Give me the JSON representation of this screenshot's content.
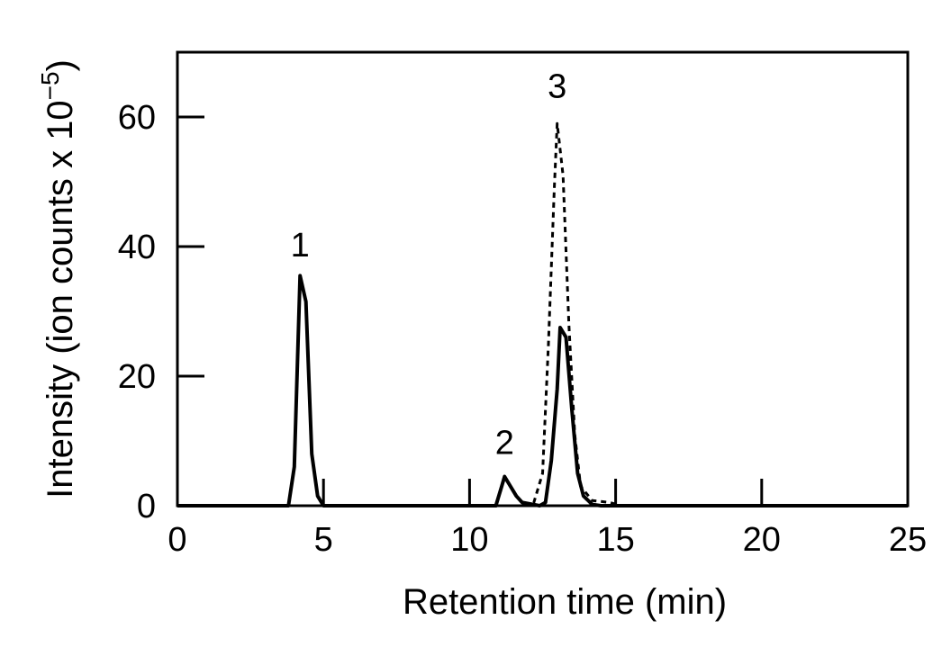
{
  "chart_data": {
    "type": "line",
    "xlabel": "Retention time (min)",
    "ylabel_main": "Intensity (ion counts x 10",
    "ylabel_exp": "−5",
    "ylabel_close": ")",
    "xlim": [
      0,
      25
    ],
    "ylim": [
      0,
      70
    ],
    "xticks": [
      {
        "value": 0,
        "label": "0"
      },
      {
        "value": 5,
        "label": "5"
      },
      {
        "value": 10,
        "label": "10"
      },
      {
        "value": 15,
        "label": "15"
      },
      {
        "value": 20,
        "label": "20"
      },
      {
        "value": 25,
        "label": "25"
      }
    ],
    "yticks": [
      {
        "value": 0,
        "label": "0"
      },
      {
        "value": 20,
        "label": "20"
      },
      {
        "value": 40,
        "label": "40"
      },
      {
        "value": 60,
        "label": "60"
      }
    ],
    "grid": false,
    "legend": "none",
    "series": [
      {
        "style": "solid",
        "color": "#000000",
        "points": [
          [
            0,
            0
          ],
          [
            3.8,
            0
          ],
          [
            4.0,
            6
          ],
          [
            4.2,
            35.5
          ],
          [
            4.4,
            31.5
          ],
          [
            4.6,
            8
          ],
          [
            4.8,
            1.5
          ],
          [
            5.0,
            0
          ],
          [
            10.9,
            0
          ],
          [
            11.1,
            3
          ],
          [
            11.2,
            4.5
          ],
          [
            11.4,
            3
          ],
          [
            11.6,
            1.5
          ],
          [
            11.8,
            0.5
          ],
          [
            12.4,
            0
          ],
          [
            12.6,
            0.5
          ],
          [
            12.8,
            7
          ],
          [
            13.0,
            18
          ],
          [
            13.1,
            27.5
          ],
          [
            13.3,
            26
          ],
          [
            13.5,
            15
          ],
          [
            13.7,
            5
          ],
          [
            13.9,
            1.5
          ],
          [
            14.2,
            0.2
          ],
          [
            14.5,
            0
          ],
          [
            25,
            0
          ]
        ]
      },
      {
        "style": "dashed",
        "color": "#000000",
        "points": [
          [
            0,
            0
          ],
          [
            12.0,
            0
          ],
          [
            12.2,
            0.5
          ],
          [
            12.5,
            5
          ],
          [
            12.7,
            25
          ],
          [
            12.9,
            49
          ],
          [
            13.0,
            59
          ],
          [
            13.2,
            51
          ],
          [
            13.4,
            28
          ],
          [
            13.6,
            11
          ],
          [
            13.8,
            3
          ],
          [
            14.2,
            0.8
          ],
          [
            14.8,
            0.5
          ],
          [
            15.2,
            0
          ],
          [
            25,
            0
          ]
        ]
      }
    ],
    "annotations": [
      {
        "text": "1",
        "x": 4.2,
        "y": 38.5
      },
      {
        "text": "2",
        "x": 11.2,
        "y": 8
      },
      {
        "text": "3",
        "x": 13.0,
        "y": 63
      }
    ]
  }
}
